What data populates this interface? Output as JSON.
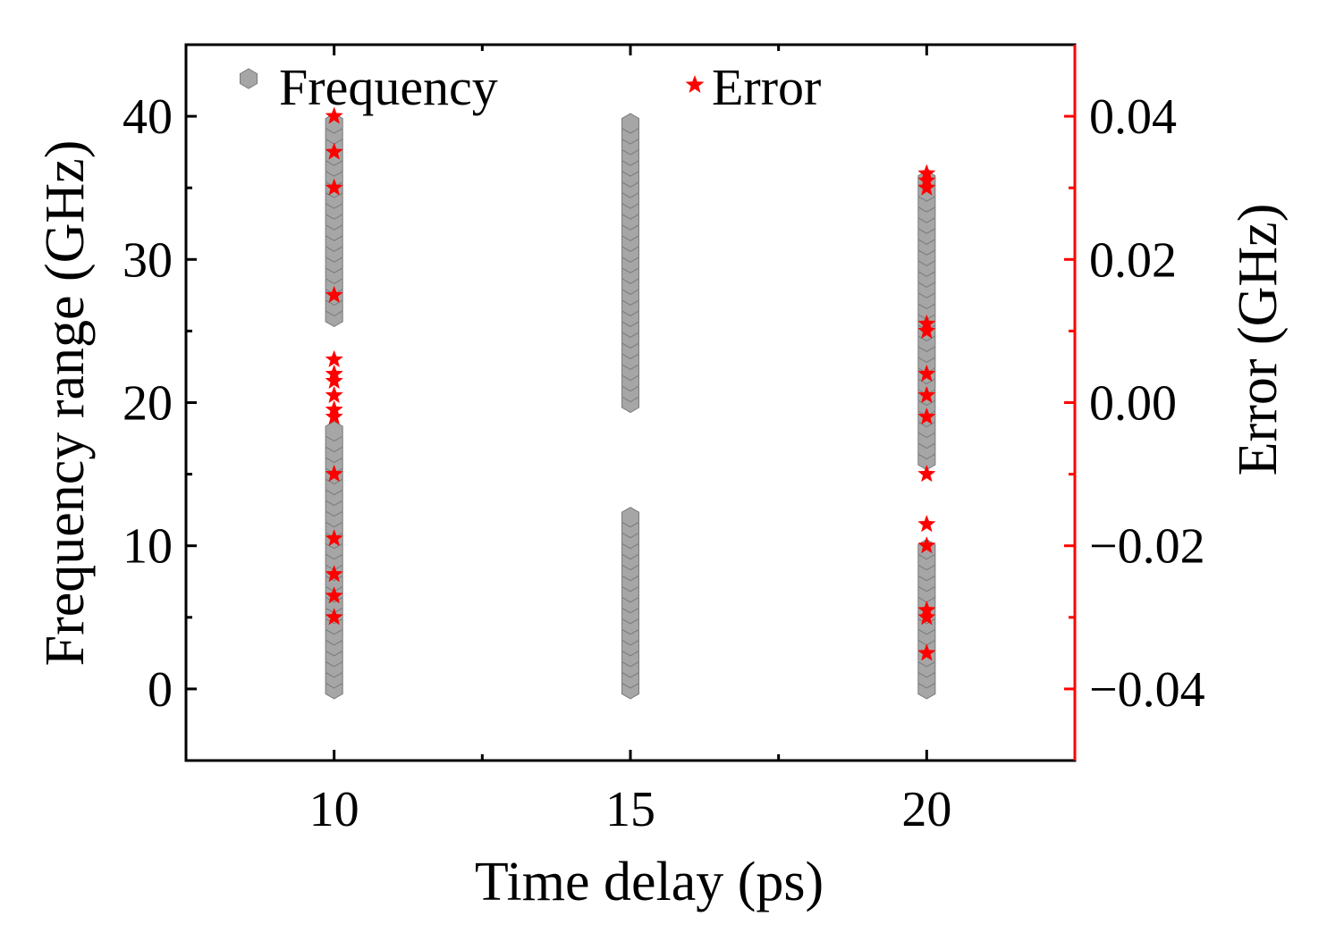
{
  "chart_data": {
    "type": "scatter",
    "xlabel": "Time delay (ps)",
    "ylabel": "Frequency range (GHz)",
    "y2label": "Error (GHz)",
    "xlim": [
      7.5,
      22.5
    ],
    "ylim": [
      -5,
      45
    ],
    "y2lim": [
      -0.05,
      0.05
    ],
    "x_ticks": [
      "10",
      "15",
      "20"
    ],
    "y_ticks": [
      "0",
      "10",
      "20",
      "30",
      "40"
    ],
    "y2_ticks": [
      "−0.04",
      "−0.02",
      "0.00",
      "0.02",
      "0.04"
    ],
    "legend_position": "top",
    "grid": false,
    "colors": {
      "frequency": "#a6a6a6",
      "frequency_edge": "#7a7a7a",
      "error": "#ff0000",
      "right_axis": "#ff0000",
      "left_axis": "#000000"
    },
    "series": [
      {
        "name": "Frequency",
        "marker": "hexagon",
        "axis": "left",
        "points": [
          {
            "x": 10,
            "y_from": 0,
            "y_to": 18,
            "step": 0.75
          },
          {
            "x": 10,
            "y_from": 26,
            "y_to": 40,
            "step": 0.75
          },
          {
            "x": 15,
            "y_from": 0,
            "y_to": 12,
            "step": 0.75
          },
          {
            "x": 15,
            "y_from": 20,
            "y_to": 40,
            "step": 0.75
          },
          {
            "x": 20,
            "y_from": 0,
            "y_to": 10,
            "step": 0.75
          },
          {
            "x": 20,
            "y_from": 16,
            "y_to": 36,
            "step": 0.75
          }
        ]
      },
      {
        "name": "Error",
        "marker": "star",
        "axis": "right",
        "x": [
          10,
          10,
          10,
          10,
          10,
          10,
          10,
          10,
          10,
          10,
          10,
          10,
          10,
          10,
          10,
          20,
          20,
          20,
          20,
          20,
          20,
          20,
          20,
          20,
          20,
          20,
          20,
          20,
          20
        ],
        "y": [
          0.04,
          0.035,
          0.03,
          0.015,
          0.006,
          0.004,
          0.003,
          0.001,
          -0.001,
          -0.002,
          -0.01,
          -0.019,
          -0.024,
          -0.027,
          -0.03,
          0.032,
          0.031,
          0.03,
          0.011,
          0.01,
          0.004,
          0.001,
          -0.002,
          -0.01,
          -0.017,
          -0.02,
          -0.029,
          -0.03,
          -0.035
        ]
      }
    ]
  }
}
